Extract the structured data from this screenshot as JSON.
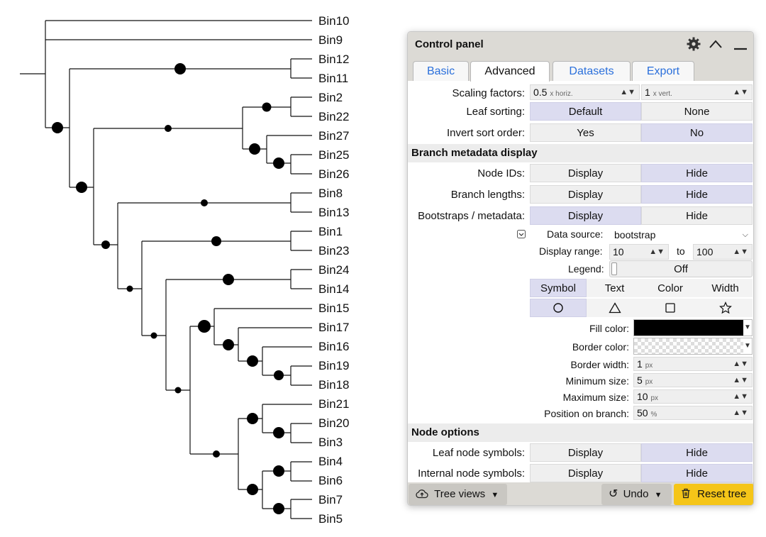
{
  "tree": {
    "leaves": [
      "Bin10",
      "Bin9",
      "Bin12",
      "Bin11",
      "Bin2",
      "Bin22",
      "Bin27",
      "Bin25",
      "Bin26",
      "Bin8",
      "Bin13",
      "Bin1",
      "Bin23",
      "Bin24",
      "Bin14",
      "Bin15",
      "Bin17",
      "Bin16",
      "Bin19",
      "Bin18",
      "Bin21",
      "Bin20",
      "Bin3",
      "Bin4",
      "Bin6",
      "Bin7",
      "Bin5"
    ]
  },
  "panel": {
    "title": "Control panel",
    "tabs": [
      "Basic",
      "Advanced",
      "Datasets",
      "Export"
    ],
    "active_tab": "Advanced",
    "scaling": {
      "label": "Scaling factors:",
      "h_value": "0.5",
      "h_unit": "x horiz.",
      "v_value": "1",
      "v_unit": "x vert."
    },
    "leaf_sorting": {
      "label": "Leaf sorting:",
      "opt1": "Default",
      "opt2": "None",
      "selected": "Default"
    },
    "invert_sort": {
      "label": "Invert sort order:",
      "opt1": "Yes",
      "opt2": "No",
      "selected": "No"
    },
    "branch_section": "Branch metadata display",
    "node_ids": {
      "label": "Node IDs:",
      "opt1": "Display",
      "opt2": "Hide",
      "selected": "Hide"
    },
    "branch_lengths": {
      "label": "Branch lengths:",
      "opt1": "Display",
      "opt2": "Hide",
      "selected": "Hide"
    },
    "bootstraps": {
      "label": "Bootstraps / metadata:",
      "opt1": "Display",
      "opt2": "Hide",
      "selected": "Display"
    },
    "data_source": {
      "label": "Data source:",
      "value": "bootstrap"
    },
    "display_range": {
      "label": "Display range:",
      "from": "10",
      "to_label": "to",
      "to": "100"
    },
    "legend": {
      "label": "Legend:",
      "value": "Off"
    },
    "style_tabs": [
      "Symbol",
      "Text",
      "Color",
      "Width"
    ],
    "style_active": "Symbol",
    "shapes": [
      "circle-icon",
      "triangle-icon",
      "square-icon",
      "star-icon"
    ],
    "fill_color": {
      "label": "Fill color:",
      "value": "#000000"
    },
    "border_color": {
      "label": "Border color:"
    },
    "border_width": {
      "label": "Border width:",
      "value": "1",
      "unit": "px"
    },
    "min_size": {
      "label": "Minimum size:",
      "value": "5",
      "unit": "px"
    },
    "max_size": {
      "label": "Maximum size:",
      "value": "10",
      "unit": "px"
    },
    "position": {
      "label": "Position on branch:",
      "value": "50",
      "unit": "%"
    },
    "node_section": "Node options",
    "leaf_symbols": {
      "label": "Leaf node symbols:",
      "opt1": "Display",
      "opt2": "Hide",
      "selected": "Hide"
    },
    "internal_symbols": {
      "label": "Internal node symbols:",
      "opt1": "Display",
      "opt2": "Hide",
      "selected": "Hide"
    },
    "footer": {
      "tree_views": "Tree views",
      "undo": "Undo",
      "reset": "Reset tree"
    },
    "colors": {
      "selected": "#dcdcf0",
      "reset": "#f5c518",
      "link": "#2a6fdb"
    }
  }
}
